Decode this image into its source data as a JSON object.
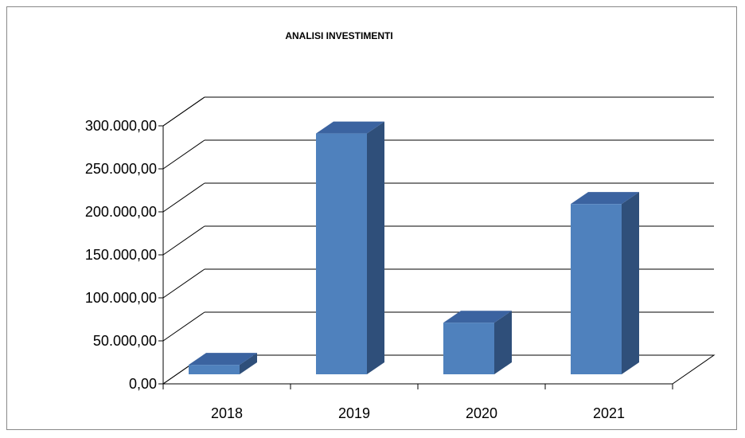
{
  "chart_data": {
    "type": "bar",
    "title": "ANALISI INVESTIMENTI",
    "categories": [
      "2018",
      "2019",
      "2020",
      "2021"
    ],
    "series": [
      {
        "values": [
          11000,
          280000,
          60000,
          198000
        ]
      }
    ],
    "ylim": [
      0,
      300000
    ],
    "yticks": [
      "0,00",
      "50.000,00",
      "100.000,00",
      "150.000,00",
      "200.000,00",
      "250.000,00",
      "300.000,00"
    ],
    "grid": true,
    "three_d": true,
    "colors": {
      "bar_front": "#4f81bd",
      "bar_side": "#2f4f7a",
      "bar_top": "#3b63a0",
      "grid": "#000000"
    }
  }
}
